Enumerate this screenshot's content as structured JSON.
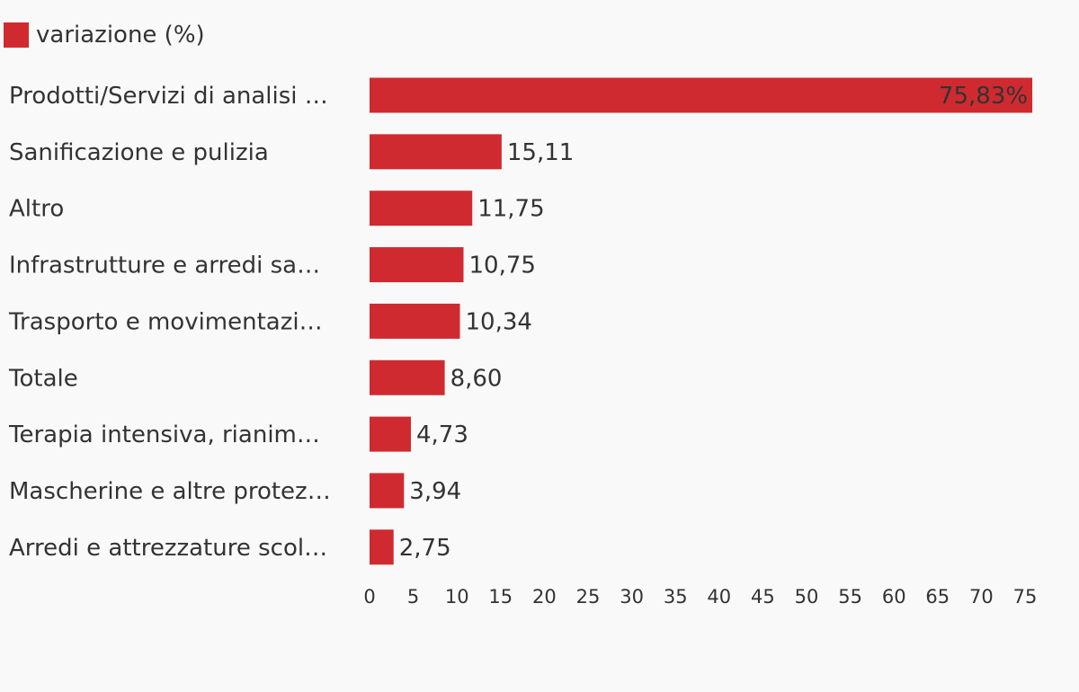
{
  "chart_data": {
    "type": "bar",
    "orientation": "horizontal",
    "legend_position": "top-left",
    "grid": false,
    "categories": [
      "Prodotti/Servizi di analisi …",
      "Sanificazione e pulizia",
      "Altro",
      "Infrastrutture e arredi sa…",
      "Trasporto e movimentazi…",
      "Totale",
      "Terapia intensiva, rianim…",
      "Mascherine e altre protez…",
      "Arredi e attrezzature scol…"
    ],
    "series": [
      {
        "name": "variazione (%)",
        "color": "#cf2a30",
        "values": [
          75.83,
          15.11,
          11.75,
          10.75,
          10.34,
          8.6,
          4.73,
          3.94,
          2.75
        ],
        "value_labels": [
          "75,83%",
          "15,11",
          "11,75",
          "10,75",
          "10,34",
          "8,60",
          "4,73",
          "3,94",
          "2,75"
        ]
      }
    ],
    "xlim": [
      0,
      75
    ],
    "xticks": [
      0,
      5,
      10,
      15,
      20,
      25,
      30,
      35,
      40,
      45,
      50,
      55,
      60,
      65,
      70,
      75
    ]
  }
}
